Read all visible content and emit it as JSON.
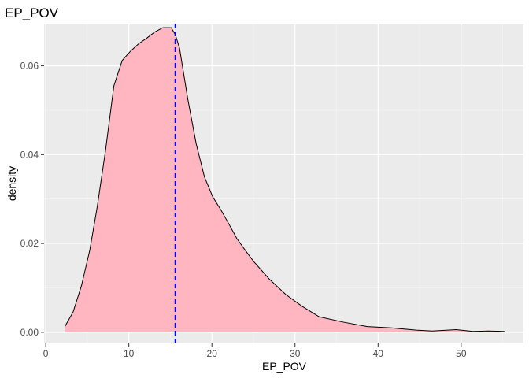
{
  "chart_data": {
    "type": "area",
    "title": "EP_POV",
    "xlabel": "EP_POV",
    "ylabel": "density",
    "xlim": [
      -0.2,
      57.5
    ],
    "ylim": [
      -0.0025,
      0.0695
    ],
    "x_ticks": [
      0,
      10,
      20,
      30,
      40,
      50
    ],
    "x_tick_labels": [
      "0",
      "10",
      "20",
      "30",
      "40",
      "50"
    ],
    "y_ticks": [
      0.0,
      0.02,
      0.04,
      0.06
    ],
    "y_tick_labels": [
      "0.00",
      "0.02",
      "0.04",
      "0.06"
    ],
    "grid": true,
    "legend": "none",
    "series": [
      {
        "fill": "#FFB6C1",
        "stroke": "#000000",
        "x": [
          2.3,
          3.3,
          4.3,
          5.3,
          6.2,
          7.2,
          8.2,
          9.2,
          10.2,
          11.2,
          12.2,
          13.1,
          14.1,
          15.1,
          15.6,
          16.1,
          17.1,
          18.1,
          19.1,
          20.1,
          21.1,
          22.1,
          23.0,
          24.0,
          25.0,
          26.9,
          28.9,
          30.9,
          32.9,
          35.8,
          38.7,
          41.6,
          44.6,
          46.5,
          48.4,
          49.4,
          51.4,
          53.3,
          55.2
        ],
        "y": [
          0.0013,
          0.0046,
          0.0105,
          0.0185,
          0.0283,
          0.041,
          0.0555,
          0.0612,
          0.0633,
          0.065,
          0.0663,
          0.0676,
          0.0686,
          0.0686,
          0.067,
          0.064,
          0.0525,
          0.0425,
          0.035,
          0.0305,
          0.0275,
          0.0242,
          0.0211,
          0.0185,
          0.016,
          0.012,
          0.0085,
          0.0058,
          0.0035,
          0.0023,
          0.0013,
          0.001,
          0.0005,
          0.0003,
          0.0005,
          0.0006,
          0.0002,
          0.0003,
          0.0002
        ]
      }
    ],
    "vline": {
      "x": 15.6,
      "color": "#0000FF",
      "style": "dashed"
    },
    "colors": {
      "panel_background": "#EBEBEB",
      "grid_major": "#FFFFFF",
      "grid_minor": "#F5F5F5",
      "fill": "#FFB6C1",
      "outline": "#000000",
      "vline": "#0000FF",
      "tick_text": "#4D4D4D",
      "title_text": "#000000"
    }
  }
}
